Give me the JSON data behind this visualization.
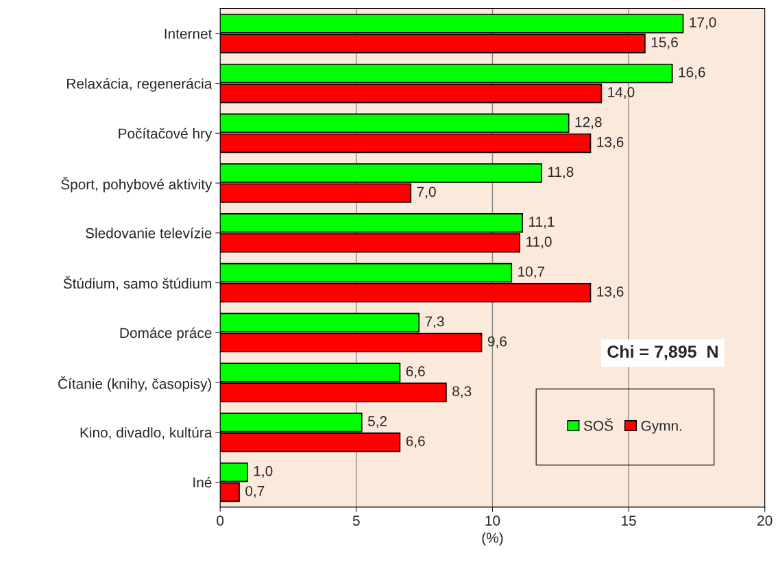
{
  "chart_data": {
    "type": "bar",
    "orientation": "horizontal",
    "xlabel": "(%)",
    "categories": [
      "Internet",
      "Relaxácia, regenerácia",
      "Počítačové hry",
      "Šport, pohybové aktivity",
      "Sledovanie televízie",
      "Štúdium, samo štúdium",
      "Domáce práce",
      "Čítanie (knihy, časopisy)",
      "Kino, divadlo, kultúra",
      "Iné"
    ],
    "series": [
      {
        "name": "SOŠ",
        "color": "#00ff00",
        "values": [
          17.0,
          16.6,
          12.8,
          11.8,
          11.1,
          10.7,
          7.3,
          6.6,
          5.2,
          1.0
        ],
        "value_labels": [
          "17,0",
          "16,6",
          "12,8",
          "11,8",
          "11,1",
          "10,7",
          "7,3",
          "6,6",
          "5,2",
          "1,0"
        ]
      },
      {
        "name": "Gymn.",
        "color": "#ff0000",
        "values": [
          15.6,
          14.0,
          13.6,
          7.0,
          11.0,
          13.6,
          9.6,
          8.3,
          6.6,
          0.7
        ],
        "value_labels": [
          "15,6",
          "14,0",
          "13,6",
          "7,0",
          "11,0",
          "13,6",
          "9,6",
          "8,3",
          "6,6",
          "0,7"
        ]
      }
    ],
    "xlim": [
      0,
      20
    ],
    "xticks": [
      0,
      5,
      10,
      15,
      20
    ],
    "grid": "x",
    "legend": "bottom right",
    "annotations": [
      "Chi = 7,895  N"
    ]
  }
}
